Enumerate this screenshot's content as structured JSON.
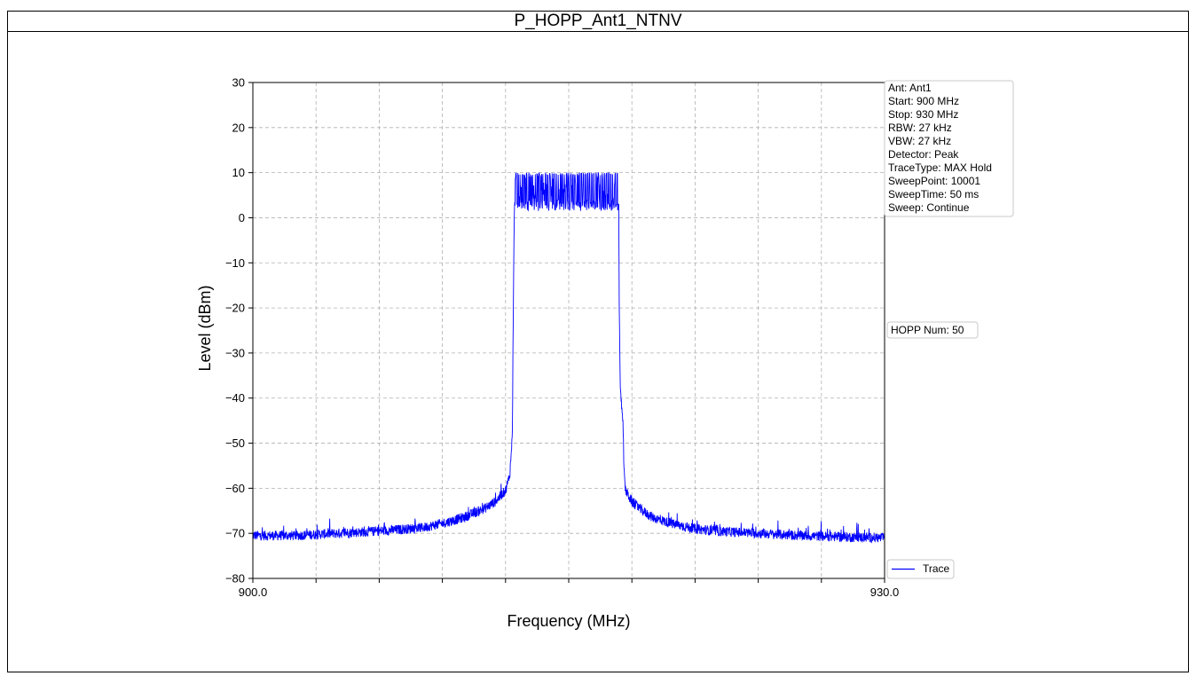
{
  "title": "P_HOPP_Ant1_NTNV",
  "chart_data": {
    "type": "line",
    "xlabel": "Frequency (MHz)",
    "ylabel": "Level (dBm)",
    "xlim": [
      900.0,
      930.0
    ],
    "ylim": [
      -80,
      30
    ],
    "x_tick_labels": [
      "900.0",
      "930.0"
    ],
    "x_minor_tick_count": 10,
    "y_ticks": [
      30,
      20,
      10,
      0,
      -10,
      -20,
      -30,
      -40,
      -50,
      -60,
      -70,
      -80
    ],
    "y_tick_labels": [
      "30",
      "20",
      "10",
      "0",
      "−10",
      "−20",
      "−30",
      "−40",
      "−50",
      "−60",
      "−70",
      "−80"
    ],
    "grid": true,
    "legend": {
      "position": "bottom-right",
      "entries": [
        "Trace"
      ]
    },
    "series": [
      {
        "name": "Trace",
        "color": "#0000ff",
        "x": [
          900.0,
          902.0,
          904.0,
          906.0,
          908.0,
          909.0,
          910.0,
          911.0,
          911.5,
          912.0,
          912.2,
          912.3,
          912.33,
          912.35,
          912.4,
          912.45,
          912.6,
          913.0,
          914.0,
          915.0,
          916.0,
          916.8,
          917.3,
          917.35,
          917.38,
          917.4,
          917.45,
          917.55,
          917.6,
          917.62,
          917.65,
          917.7,
          918.0,
          918.5,
          919.0,
          920.0,
          921.0,
          922.0,
          924.0,
          926.0,
          928.0,
          930.0
        ],
        "values": [
          -70.5,
          -70.5,
          -70.0,
          -69.5,
          -68.8,
          -67.8,
          -66.5,
          -64.5,
          -63.0,
          -60.5,
          -57.0,
          -50.0,
          -46.0,
          -30.0,
          -5.0,
          9.5,
          10.0,
          10.0,
          10.0,
          10.0,
          10.0,
          10.0,
          10.0,
          9.5,
          0.0,
          -20.0,
          -38.0,
          -44.0,
          -50.0,
          -55.0,
          -58.0,
          -60.5,
          -63.0,
          -65.0,
          -66.5,
          -68.0,
          -69.0,
          -69.5,
          -70.0,
          -70.5,
          -70.8,
          -71.0
        ],
        "hop_band_mhz": [
          912.4,
          917.4
        ],
        "hop_level_range_dbm": [
          0,
          10
        ]
      }
    ]
  },
  "info_box": {
    "lines": [
      "Ant: Ant1",
      "Start: 900 MHz",
      "Stop: 930 MHz",
      "RBW: 27 kHz",
      "VBW: 27 kHz",
      "Detector: Peak",
      "TraceType: MAX Hold",
      "SweepPoint: 10001",
      "SweepTime: 50 ms",
      "Sweep: Continue"
    ]
  },
  "hopp_box": {
    "text": "HOPP Num: 50"
  }
}
